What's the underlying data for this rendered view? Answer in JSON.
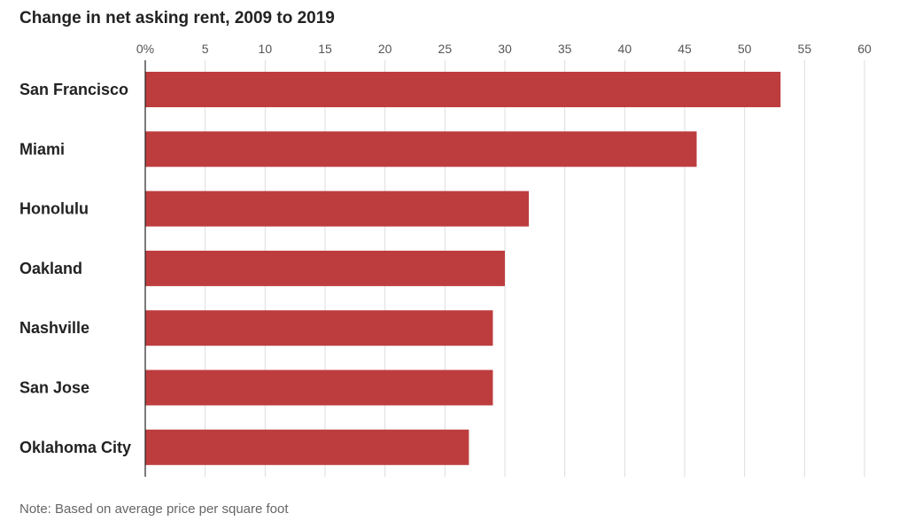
{
  "chart_data": {
    "type": "bar",
    "orientation": "horizontal",
    "title": "Change in net asking rent, 2009 to 2019",
    "note": "Note: Based on average price per square foot",
    "categories": [
      "San Francisco",
      "Miami",
      "Honolulu",
      "Oakland",
      "Nashville",
      "San Jose",
      "Oklahoma City"
    ],
    "values": [
      53,
      46,
      32,
      30,
      29,
      29,
      27
    ],
    "xlim": [
      0,
      60
    ],
    "xticks": [
      0,
      5,
      10,
      15,
      20,
      25,
      30,
      35,
      40,
      45,
      50,
      55,
      60
    ],
    "xtick_labels": [
      "0%",
      "5",
      "10",
      "15",
      "20",
      "25",
      "30",
      "35",
      "40",
      "45",
      "50",
      "55",
      "60"
    ],
    "grid": true,
    "bar_color": "#bd3d3f"
  }
}
